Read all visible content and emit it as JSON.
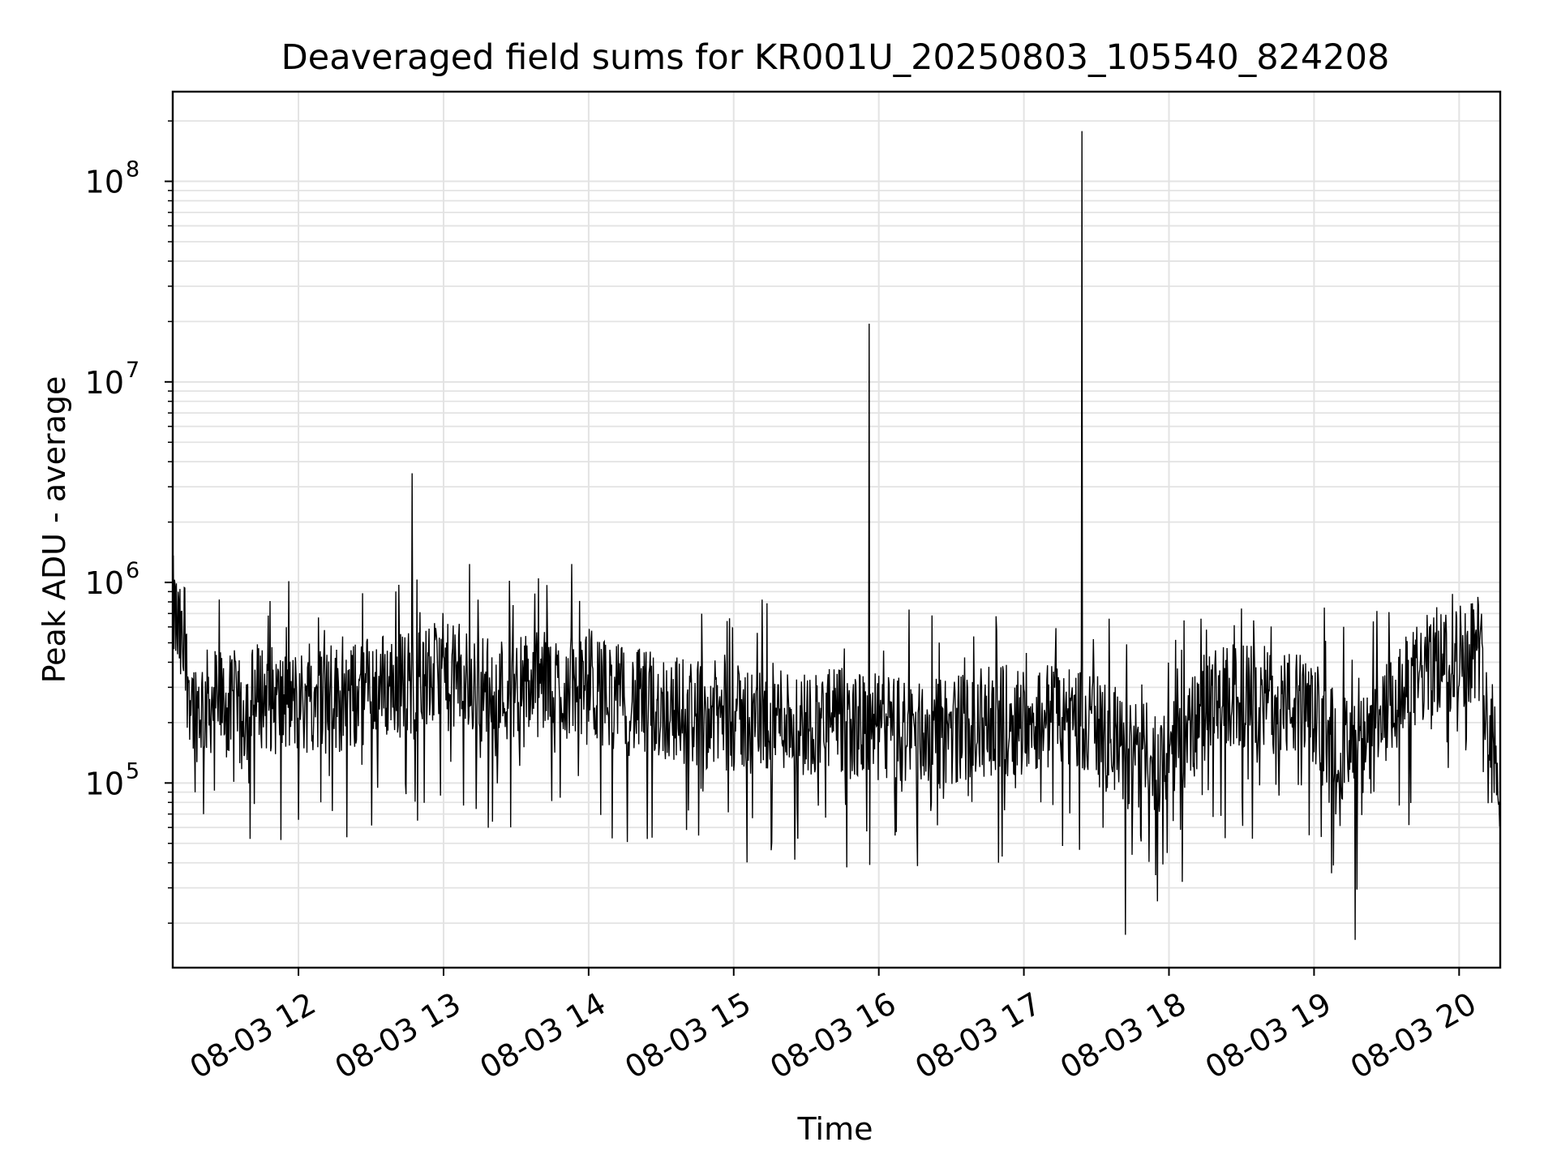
{
  "chart_data": {
    "type": "line",
    "title": "Deaveraged field sums for KR001U_20250803_105540_824208",
    "xlabel": "Time",
    "ylabel": "Peak ADU - average",
    "x_tick_labels": [
      "08-03 12",
      "08-03 13",
      "08-03 14",
      "08-03 15",
      "08-03 16",
      "08-03 17",
      "08-03 18",
      "08-03 19",
      "08-03 20"
    ],
    "x_ticks": [
      "2025-08-03 12:00",
      "2025-08-03 13:00",
      "2025-08-03 14:00",
      "2025-08-03 15:00",
      "2025-08-03 16:00",
      "2025-08-03 17:00",
      "2025-08-03 18:00",
      "2025-08-03 19:00",
      "2025-08-03 20:00"
    ],
    "xlim": [
      "2025-08-03 11:08",
      "2025-08-03 20:17"
    ],
    "y_scale": "log",
    "ylim": [
      12000,
      280000000
    ],
    "y_tick_labels": [
      {
        "base": "10",
        "exp": "5",
        "value": 100000
      },
      {
        "base": "10",
        "exp": "6",
        "value": 1000000
      },
      {
        "base": "10",
        "exp": "7",
        "value": 10000000
      },
      {
        "base": "10",
        "exp": "8",
        "value": 100000000
      }
    ],
    "grid": "major and minor",
    "line_color": "#000000",
    "series": [
      {
        "x": [
          "2025-08-03 11:08",
          "2025-08-03 11:17",
          "2025-08-03 11:26",
          "2025-08-03 11:35",
          "2025-08-03 11:44",
          "2025-08-03 11:53",
          "2025-08-03 12:02",
          "2025-08-03 12:11",
          "2025-08-03 12:20",
          "2025-08-03 12:29",
          "2025-08-03 12:38",
          "2025-08-03 12:47",
          "2025-08-03 12:56",
          "2025-08-03 13:05",
          "2025-08-03 13:14",
          "2025-08-03 13:23",
          "2025-08-03 13:32",
          "2025-08-03 13:41",
          "2025-08-03 13:50",
          "2025-08-03 13:59",
          "2025-08-03 14:08",
          "2025-08-03 14:17",
          "2025-08-03 14:26",
          "2025-08-03 14:35",
          "2025-08-03 14:44",
          "2025-08-03 14:53",
          "2025-08-03 15:02",
          "2025-08-03 15:11",
          "2025-08-03 15:20",
          "2025-08-03 15:29",
          "2025-08-03 15:38",
          "2025-08-03 15:47",
          "2025-08-03 15:56",
          "2025-08-03 16:05",
          "2025-08-03 16:14",
          "2025-08-03 16:23",
          "2025-08-03 16:32",
          "2025-08-03 16:41",
          "2025-08-03 16:50",
          "2025-08-03 16:59",
          "2025-08-03 17:08",
          "2025-08-03 17:17",
          "2025-08-03 17:26",
          "2025-08-03 17:35",
          "2025-08-03 17:44",
          "2025-08-03 17:53",
          "2025-08-03 18:02",
          "2025-08-03 18:11",
          "2025-08-03 18:20",
          "2025-08-03 18:29",
          "2025-08-03 18:38",
          "2025-08-03 18:47",
          "2025-08-03 18:56",
          "2025-08-03 19:05",
          "2025-08-03 19:14",
          "2025-08-03 19:23",
          "2025-08-03 19:32",
          "2025-08-03 19:41",
          "2025-08-03 19:50",
          "2025-08-03 19:59",
          "2025-08-03 20:08",
          "2025-08-03 20:17"
        ],
        "y": [
          800000,
          250000,
          280000,
          230000,
          300000,
          260000,
          270000,
          300000,
          270000,
          320000,
          330000,
          340000,
          360000,
          350000,
          320000,
          310000,
          330000,
          330000,
          320000,
          310000,
          300000,
          270000,
          260000,
          250000,
          240000,
          230000,
          220000,
          220000,
          230000,
          210000,
          220000,
          210000,
          200000,
          200000,
          190000,
          190000,
          200000,
          210000,
          220000,
          220000,
          230000,
          230000,
          220000,
          170000,
          150000,
          140000,
          150000,
          210000,
          270000,
          290000,
          280000,
          270000,
          250000,
          200000,
          150000,
          160000,
          250000,
          340000,
          430000,
          450000,
          530000,
          110000
        ]
      }
    ],
    "spikes": [
      {
        "x": "2025-08-03 12:47",
        "y": 3500000
      },
      {
        "x": "2025-08-03 15:56",
        "y": 19500000
      },
      {
        "x": "2025-08-03 17:24",
        "y": 178000000
      }
    ],
    "dips": [
      {
        "x": "2025-08-03 17:42",
        "y": 17500
      },
      {
        "x": "2025-08-03 19:17",
        "y": 16500
      }
    ]
  }
}
